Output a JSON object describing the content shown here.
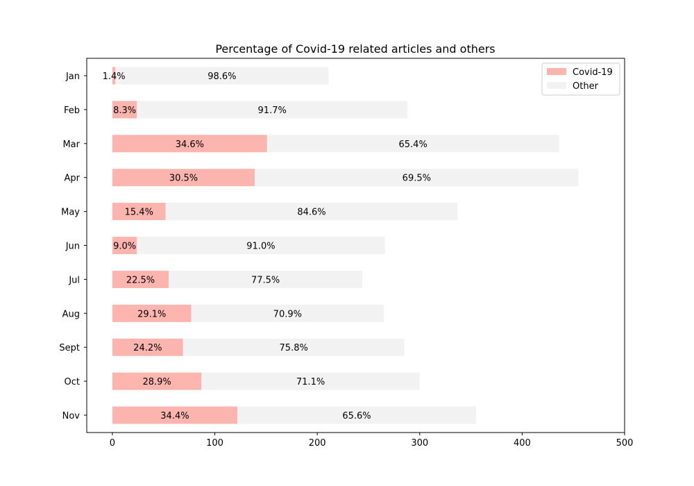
{
  "chart_data": {
    "type": "bar",
    "orientation": "horizontal",
    "stacked": true,
    "title": "Percentage of Covid-19 related articles and others",
    "xlabel": "",
    "ylabel": "",
    "categories": [
      "Jan",
      "Feb",
      "Mar",
      "Apr",
      "May",
      "Jun",
      "Jul",
      "Aug",
      "Sept",
      "Oct",
      "Nov"
    ],
    "series": [
      {
        "name": "Covid-19",
        "color": "#fbb4ae",
        "values": [
          3,
          24,
          151,
          139,
          52,
          24,
          55,
          77,
          69,
          87,
          122
        ],
        "labels": [
          "1.4%",
          "8.3%",
          "34.6%",
          "30.5%",
          "15.4%",
          "9.0%",
          "22.5%",
          "29.1%",
          "24.2%",
          "28.9%",
          "34.4%"
        ]
      },
      {
        "name": "Other",
        "color": "#f2f2f2",
        "values": [
          208,
          264,
          285,
          316,
          285,
          242,
          189,
          188,
          216,
          213,
          233
        ],
        "labels": [
          "98.6%",
          "91.7%",
          "65.4%",
          "69.5%",
          "84.6%",
          "91.0%",
          "77.5%",
          "70.9%",
          "75.8%",
          "71.1%",
          "65.6%"
        ]
      }
    ],
    "xlim": [
      -25,
      500
    ],
    "xticks": [
      0,
      100,
      200,
      300,
      400,
      500
    ],
    "grid": false,
    "legend_position": "top-right"
  }
}
